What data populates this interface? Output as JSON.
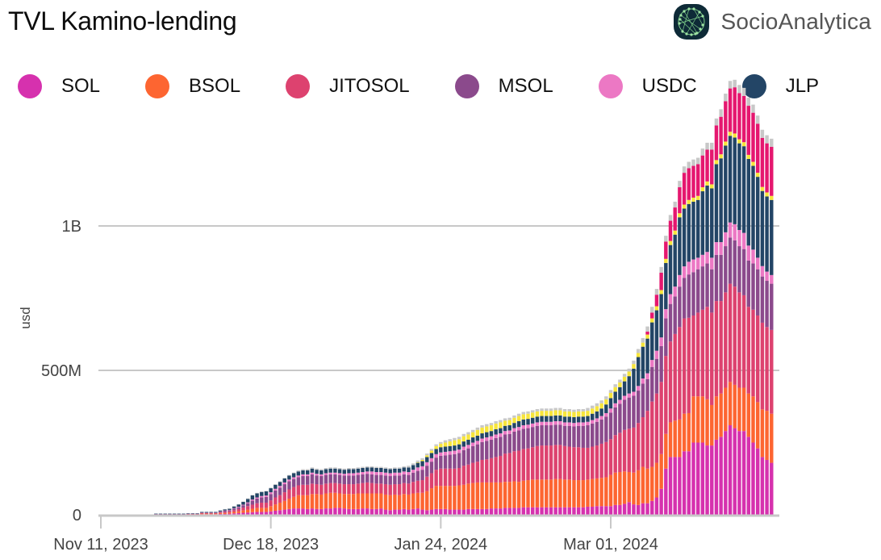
{
  "header": {
    "title": "TVL Kamino-lending",
    "brand_name": "SocioAnalytica",
    "brand_logo_icon": "network-globe-icon"
  },
  "legend": [
    {
      "label": "SOL",
      "color": "#d631ae"
    },
    {
      "label": "BSOL",
      "color": "#fd6531"
    },
    {
      "label": "JITOSOL",
      "color": "#dd426f"
    },
    {
      "label": "MSOL",
      "color": "#8b4a8c"
    },
    {
      "label": "USDC",
      "color": "#ec78c4"
    },
    {
      "label": "JLP",
      "color": "#234566"
    }
  ],
  "chart_data": {
    "type": "bar",
    "stacked": true,
    "title": "TVL Kamino-lending",
    "xlabel": "",
    "ylabel": "usd",
    "ylim": [
      0,
      1300000000
    ],
    "yticks": [
      0,
      500000000,
      1000000000
    ],
    "ytick_labels": [
      "0",
      "500M",
      "1B"
    ],
    "xlim": [
      "2023-11-11",
      "2024-04-06"
    ],
    "xticks": [
      "2023-11-11",
      "2023-12-18",
      "2024-01-24",
      "2024-03-01"
    ],
    "xtick_labels": [
      "Nov 11, 2023",
      "Dec 18, 2023",
      "Jan 24, 2024",
      "Mar 01, 2024"
    ],
    "grid": "horizontal",
    "legend_position": "top-left",
    "start_date": "2023-11-23",
    "unit": "USD millions",
    "series": [
      {
        "name": "SOL",
        "color": "#d631ae",
        "values": [
          1,
          1,
          1,
          1,
          1,
          1,
          1,
          1,
          1,
          1,
          2,
          2,
          2,
          2,
          3,
          3,
          4,
          5,
          6,
          7,
          8,
          9,
          10,
          10,
          10,
          12,
          14,
          16,
          18,
          20,
          22,
          22,
          22,
          20,
          22,
          20,
          20,
          22,
          22,
          24,
          24,
          22,
          20,
          20,
          20,
          22,
          22,
          20,
          20,
          22,
          18,
          16,
          18,
          18,
          20,
          18,
          20,
          22,
          18,
          16,
          18,
          20,
          20,
          20,
          18,
          18,
          18,
          18,
          20,
          20,
          20,
          20,
          20,
          22,
          22,
          22,
          24,
          24,
          24,
          24,
          26,
          26,
          26,
          26,
          26,
          26,
          26,
          26,
          26,
          26,
          26,
          26,
          26,
          26,
          28,
          28,
          30,
          30,
          30,
          30,
          34,
          34,
          38,
          44,
          36,
          34,
          40,
          40,
          48,
          60,
          90,
          160,
          200,
          200,
          200,
          220,
          220,
          250,
          250,
          250,
          240,
          240,
          260,
          270,
          290,
          310,
          300,
          290,
          290,
          270,
          250,
          230,
          200,
          190,
          180
        ]
      },
      {
        "name": "BSOL",
        "color": "#fd6531",
        "values": [
          0,
          0,
          0,
          0,
          0,
          0,
          0,
          1,
          1,
          1,
          2,
          2,
          2,
          2,
          3,
          3,
          4,
          5,
          6,
          8,
          10,
          12,
          14,
          14,
          14,
          18,
          22,
          26,
          30,
          36,
          40,
          46,
          46,
          48,
          50,
          52,
          50,
          52,
          54,
          52,
          50,
          50,
          52,
          52,
          54,
          52,
          52,
          54,
          54,
          52,
          52,
          52,
          52,
          50,
          52,
          52,
          54,
          54,
          58,
          66,
          74,
          80,
          80,
          80,
          82,
          82,
          84,
          86,
          88,
          90,
          92,
          92,
          92,
          90,
          90,
          90,
          90,
          90,
          92,
          90,
          92,
          94,
          96,
          96,
          96,
          96,
          96,
          98,
          98,
          96,
          96,
          94,
          94,
          94,
          94,
          96,
          96,
          98,
          100,
          108,
          112,
          114,
          112,
          104,
          110,
          120,
          126,
          120,
          118,
          120,
          120,
          120,
          120,
          126,
          130,
          130,
          132,
          160,
          160,
          160,
          160,
          140,
          150,
          150,
          150,
          150,
          150,
          150,
          150,
          150,
          160,
          160,
          165,
          170,
          170
        ]
      },
      {
        "name": "JITOSOL",
        "color": "#dd426f",
        "values": [
          1,
          1,
          1,
          1,
          1,
          1,
          1,
          1,
          1,
          1,
          2,
          2,
          2,
          2,
          3,
          4,
          4,
          6,
          8,
          10,
          12,
          14,
          16,
          18,
          18,
          20,
          24,
          26,
          30,
          32,
          34,
          34,
          36,
          36,
          36,
          34,
          34,
          34,
          34,
          34,
          34,
          34,
          34,
          34,
          34,
          36,
          38,
          36,
          34,
          34,
          36,
          36,
          36,
          38,
          38,
          38,
          40,
          42,
          44,
          50,
          52,
          56,
          60,
          60,
          60,
          60,
          60,
          66,
          66,
          70,
          72,
          78,
          80,
          84,
          88,
          92,
          98,
          100,
          104,
          108,
          110,
          110,
          112,
          116,
          118,
          118,
          118,
          118,
          118,
          116,
          114,
          114,
          114,
          112,
          110,
          112,
          114,
          118,
          122,
          124,
          130,
          136,
          144,
          150,
          156,
          164,
          172,
          200,
          226,
          240,
          250,
          270,
          280,
          300,
          320,
          330,
          330,
          280,
          290,
          300,
          320,
          320,
          330,
          320,
          330,
          340,
          340,
          330,
          320,
          300,
          300,
          300,
          300,
          290,
          290
        ]
      },
      {
        "name": "MSOL",
        "color": "#8b4a8c",
        "values": [
          1,
          1,
          1,
          1,
          1,
          1,
          1,
          1,
          1,
          1,
          2,
          2,
          2,
          2,
          3,
          4,
          4,
          5,
          6,
          8,
          10,
          14,
          16,
          18,
          20,
          22,
          24,
          26,
          28,
          28,
          28,
          28,
          30,
          30,
          32,
          30,
          30,
          30,
          30,
          30,
          30,
          30,
          30,
          30,
          30,
          30,
          30,
          30,
          30,
          30,
          30,
          30,
          30,
          30,
          30,
          30,
          32,
          34,
          36,
          38,
          40,
          42,
          44,
          46,
          48,
          50,
          52,
          54,
          56,
          58,
          60,
          62,
          64,
          64,
          66,
          66,
          66,
          66,
          68,
          70,
          70,
          70,
          70,
          70,
          70,
          70,
          70,
          70,
          70,
          70,
          72,
          72,
          74,
          76,
          78,
          80,
          82,
          84,
          88,
          92,
          96,
          100,
          104,
          108,
          110,
          112,
          116,
          110,
          120,
          120,
          124,
          130,
          130,
          130,
          140,
          140,
          150,
          150,
          150,
          150,
          150,
          150,
          160,
          160,
          160,
          160,
          160,
          160,
          160,
          160,
          160,
          160,
          160,
          160,
          160
        ]
      },
      {
        "name": "USDC",
        "color": "#ec78c4",
        "values": [
          0,
          0,
          0,
          0,
          0,
          0,
          0,
          0,
          0,
          0,
          0,
          0,
          0,
          0,
          0,
          1,
          1,
          2,
          2,
          2,
          3,
          4,
          4,
          5,
          5,
          6,
          6,
          6,
          6,
          6,
          6,
          6,
          6,
          6,
          6,
          6,
          6,
          6,
          6,
          6,
          6,
          6,
          8,
          8,
          8,
          8,
          8,
          10,
          10,
          10,
          10,
          10,
          10,
          10,
          10,
          10,
          10,
          12,
          12,
          12,
          12,
          12,
          12,
          12,
          12,
          12,
          12,
          12,
          12,
          12,
          12,
          12,
          12,
          12,
          12,
          12,
          12,
          12,
          12,
          12,
          12,
          12,
          12,
          12,
          12,
          12,
          12,
          12,
          12,
          12,
          12,
          12,
          12,
          12,
          12,
          12,
          12,
          12,
          12,
          14,
          14,
          14,
          14,
          14,
          14,
          16,
          18,
          20,
          24,
          28,
          30,
          32,
          34,
          34,
          40,
          40,
          44,
          44,
          40,
          40,
          40,
          40,
          44,
          44,
          48,
          52,
          56,
          56,
          56,
          52,
          48,
          40,
          36,
          32,
          30
        ]
      },
      {
        "name": "JLP",
        "color": "#234566",
        "values": [
          1,
          1,
          1,
          1,
          1,
          1,
          1,
          1,
          1,
          1,
          2,
          2,
          2,
          2,
          3,
          4,
          4,
          6,
          8,
          10,
          12,
          14,
          14,
          14,
          14,
          14,
          14,
          14,
          14,
          14,
          14,
          14,
          14,
          14,
          14,
          14,
          14,
          14,
          14,
          14,
          14,
          14,
          14,
          14,
          14,
          14,
          14,
          14,
          14,
          14,
          14,
          14,
          14,
          14,
          14,
          16,
          16,
          16,
          18,
          18,
          18,
          18,
          18,
          18,
          18,
          18,
          18,
          18,
          18,
          18,
          18,
          18,
          18,
          18,
          18,
          18,
          18,
          18,
          18,
          20,
          20,
          20,
          20,
          20,
          20,
          20,
          20,
          20,
          20,
          20,
          20,
          20,
          20,
          20,
          20,
          22,
          24,
          26,
          30,
          36,
          40,
          44,
          50,
          60,
          80,
          100,
          110,
          120,
          130,
          140,
          150,
          160,
          170,
          180,
          200,
          200,
          200,
          200,
          200,
          220,
          230,
          240,
          270,
          290,
          300,
          300,
          300,
          300,
          300,
          300,
          290,
          280,
          260,
          260,
          260
        ]
      },
      {
        "name": "Other (yellow)",
        "color": "#f7e53b",
        "values": [
          0,
          0,
          0,
          0,
          0,
          0,
          0,
          0,
          0,
          0,
          0,
          0,
          0,
          0,
          0,
          0,
          0,
          0,
          0,
          0,
          0,
          0,
          0,
          0,
          0,
          0,
          0,
          0,
          0,
          0,
          0,
          0,
          0,
          0,
          0,
          0,
          0,
          0,
          0,
          0,
          0,
          0,
          0,
          0,
          0,
          0,
          0,
          0,
          0,
          0,
          0,
          0,
          0,
          0,
          0,
          0,
          0,
          2,
          4,
          6,
          8,
          10,
          12,
          14,
          16,
          18,
          18,
          18,
          18,
          18,
          20,
          20,
          20,
          20,
          20,
          20,
          18,
          18,
          18,
          18,
          18,
          18,
          18,
          18,
          18,
          18,
          18,
          18,
          18,
          18,
          18,
          18,
          18,
          18,
          18,
          18,
          18,
          18,
          18,
          18,
          16,
          16,
          16,
          16,
          16,
          14,
          14,
          14,
          14,
          14,
          14,
          14,
          14,
          14,
          14,
          14,
          14,
          14,
          14,
          14,
          14,
          14,
          14,
          14,
          14,
          14,
          14,
          14,
          14,
          14,
          14,
          14,
          14,
          14,
          14
        ]
      },
      {
        "name": "Other (crimson)",
        "color": "#e5176f",
        "values": [
          0,
          0,
          0,
          0,
          0,
          0,
          0,
          0,
          0,
          0,
          0,
          0,
          0,
          0,
          0,
          0,
          0,
          0,
          0,
          0,
          0,
          0,
          0,
          0,
          0,
          0,
          0,
          0,
          0,
          0,
          0,
          0,
          0,
          0,
          0,
          0,
          0,
          0,
          0,
          0,
          0,
          0,
          0,
          0,
          0,
          0,
          0,
          0,
          0,
          0,
          0,
          0,
          0,
          0,
          0,
          0,
          0,
          0,
          0,
          0,
          0,
          0,
          0,
          0,
          0,
          0,
          0,
          0,
          0,
          0,
          0,
          0,
          0,
          0,
          0,
          0,
          0,
          0,
          0,
          0,
          0,
          0,
          0,
          0,
          0,
          0,
          0,
          0,
          0,
          0,
          0,
          0,
          0,
          0,
          0,
          0,
          0,
          0,
          0,
          0,
          0,
          0,
          0,
          0,
          0,
          0,
          0,
          10,
          20,
          40,
          60,
          60,
          70,
          80,
          90,
          110,
          110,
          110,
          110,
          110,
          110,
          120,
          120,
          130,
          140,
          150,
          160,
          160,
          160,
          170,
          170,
          170,
          170,
          170,
          170
        ]
      },
      {
        "name": "Other (gray)",
        "color": "#c8c8c8",
        "values": [
          0,
          0,
          0,
          0,
          0,
          0,
          0,
          0,
          0,
          0,
          0,
          0,
          0,
          0,
          0,
          1,
          1,
          1,
          1,
          1,
          2,
          2,
          2,
          2,
          2,
          2,
          2,
          2,
          2,
          2,
          2,
          4,
          4,
          4,
          4,
          4,
          4,
          4,
          4,
          4,
          4,
          4,
          4,
          4,
          4,
          4,
          4,
          4,
          4,
          4,
          4,
          4,
          4,
          4,
          4,
          6,
          6,
          6,
          6,
          6,
          6,
          6,
          6,
          8,
          8,
          8,
          8,
          8,
          8,
          8,
          8,
          8,
          8,
          8,
          8,
          8,
          8,
          8,
          8,
          8,
          8,
          8,
          8,
          8,
          8,
          8,
          8,
          8,
          8,
          8,
          8,
          8,
          8,
          8,
          10,
          10,
          10,
          10,
          10,
          10,
          10,
          10,
          10,
          10,
          12,
          14,
          16,
          18,
          20,
          20,
          20,
          20,
          20,
          20,
          22,
          22,
          22,
          22,
          22,
          24,
          24,
          24,
          24,
          26,
          26,
          26,
          26,
          28,
          28,
          28,
          28,
          28,
          28,
          28,
          28
        ]
      }
    ]
  }
}
